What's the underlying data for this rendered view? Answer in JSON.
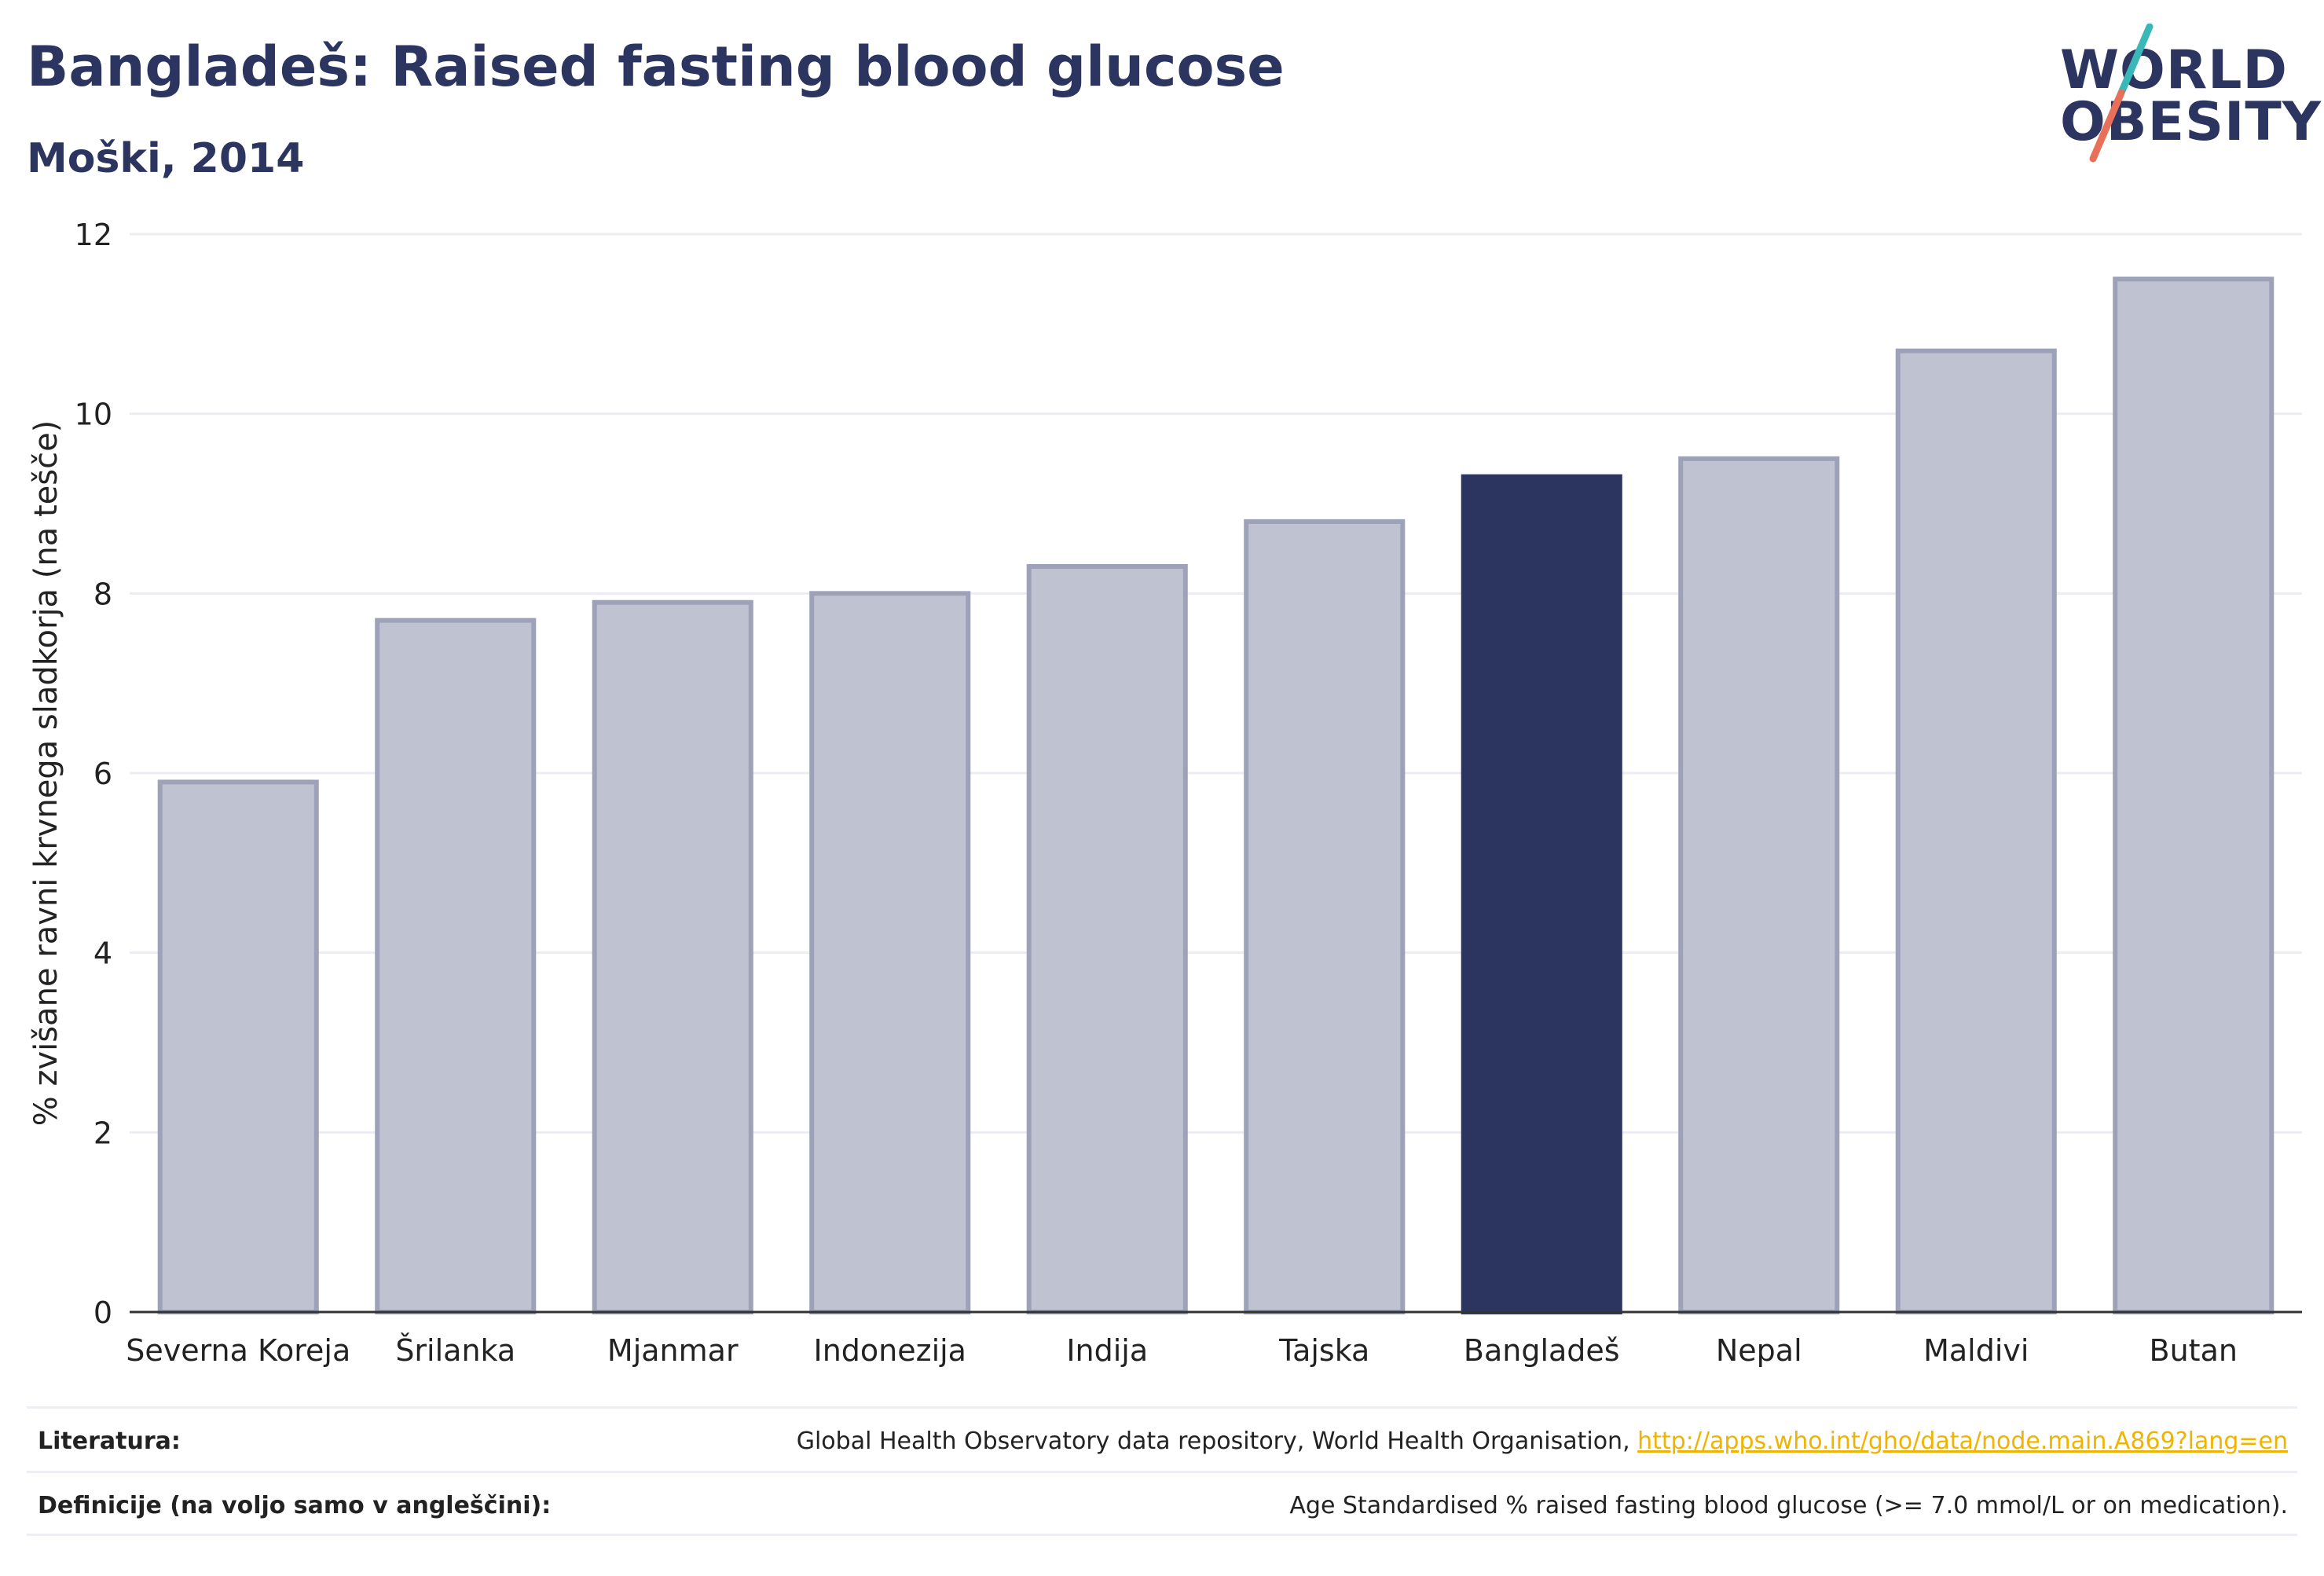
{
  "header": {
    "title": "Bangladeš: Raised fasting blood glucose",
    "subtitle": "Moški, 2014"
  },
  "logo": {
    "line1": "WORLD",
    "line2": "OBESITY",
    "accent_teal": "#3ab8b8",
    "accent_coral": "#e8705a"
  },
  "colors": {
    "bar_default": "#bfc2d0",
    "bar_border": "#9da2b8",
    "bar_highlight": "#2b3560",
    "text_dark": "#2b3560",
    "grid": "#ebedf2",
    "link": "#f0b400"
  },
  "chart_data": {
    "type": "bar",
    "categories": [
      "Severna Koreja",
      "Šrilanka",
      "Mjanmar",
      "Indonezija",
      "Indija",
      "Tajska",
      "Bangladeš",
      "Nepal",
      "Maldivi",
      "Butan"
    ],
    "values": [
      5.9,
      7.7,
      7.9,
      8.0,
      8.3,
      8.8,
      9.3,
      9.5,
      10.7,
      11.5
    ],
    "highlight": "Bangladeš",
    "ylabel": "% zvišane ravni krvnega sladkorja (na tešče)",
    "xlabel": "",
    "ylim": [
      0,
      12
    ],
    "yticks": [
      0,
      2,
      4,
      6,
      8,
      10,
      12
    ],
    "grid": true
  },
  "footer": {
    "sources_label": "Literatura:",
    "sources_text": "Global Health Observatory data repository, World Health Organisation, ",
    "sources_link": "http://apps.who.int/gho/data/node.main.A869?lang=en",
    "definitions_label": "Definicije (na voljo samo v angleščini):",
    "definitions_text": "Age Standardised % raised fasting blood glucose (>= 7.0 mmol/L or on medication)."
  }
}
